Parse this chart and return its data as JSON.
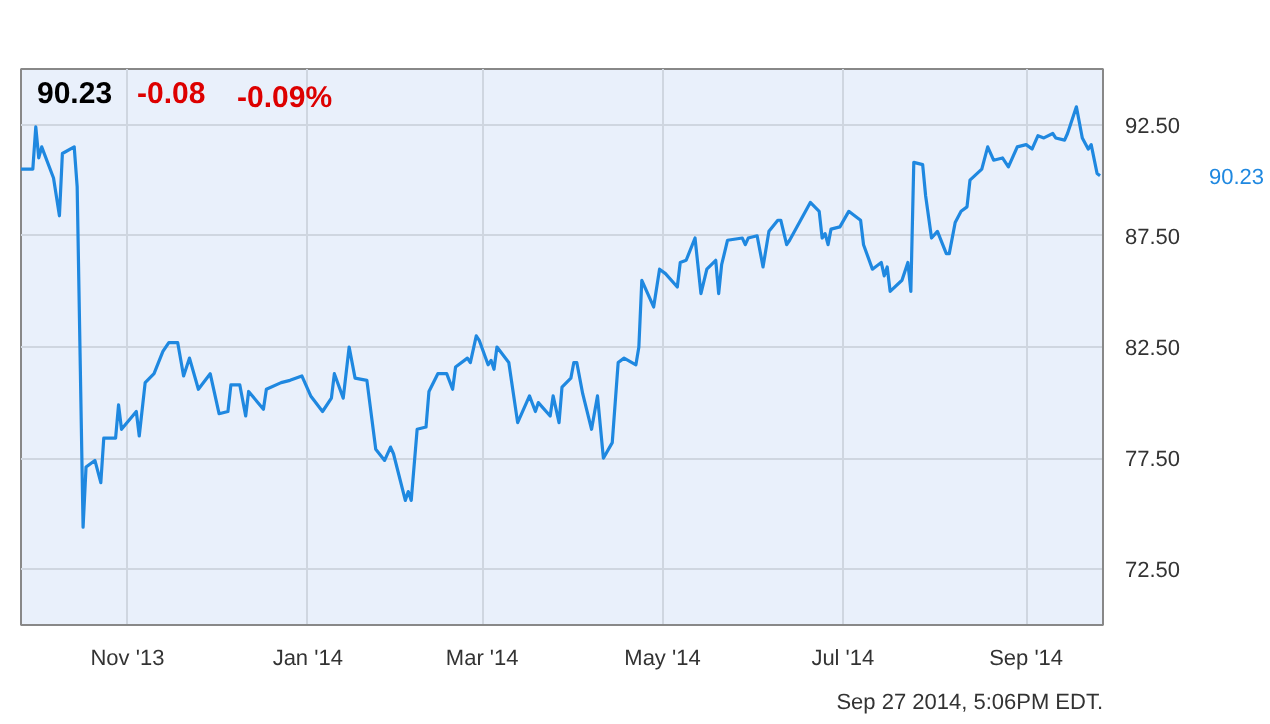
{
  "chart_data": {
    "type": "line",
    "title": "90.23",
    "annotations": [
      "-0.08",
      "-0.09%",
      "Sep 27 2014, 5:06PM EDT.",
      "90.23"
    ],
    "x": [
      "2013-09-26",
      "2013-09-30",
      "2013-10-01",
      "2013-10-02",
      "2013-10-03",
      "2013-10-07",
      "2013-10-09",
      "2013-10-10",
      "2013-10-14",
      "2013-10-15",
      "2013-10-17",
      "2013-10-18",
      "2013-10-21",
      "2013-10-23",
      "2013-10-24",
      "2013-10-28",
      "2013-10-29",
      "2013-10-30",
      "2013-11-04",
      "2013-11-05",
      "2013-11-07",
      "2013-11-10",
      "2013-11-13",
      "2013-11-15",
      "2013-11-18",
      "2013-11-20",
      "2013-11-22",
      "2013-11-25",
      "2013-11-29",
      "2013-12-02",
      "2013-12-05",
      "2013-12-06",
      "2013-12-09",
      "2013-12-11",
      "2013-12-12",
      "2013-12-17",
      "2013-12-18",
      "2013-12-23",
      "2013-12-26",
      "2013-12-30",
      "2014-01-02",
      "2014-01-06",
      "2014-01-09",
      "2014-01-10",
      "2014-01-13",
      "2014-01-15",
      "2014-01-17",
      "2014-01-21",
      "2014-01-24",
      "2014-01-27",
      "2014-01-29",
      "2014-01-30",
      "2014-02-03",
      "2014-02-04",
      "2014-02-05",
      "2014-02-07",
      "2014-02-10",
      "2014-02-11",
      "2014-02-14",
      "2014-02-17",
      "2014-02-19",
      "2014-02-20",
      "2014-02-24",
      "2014-02-25",
      "2014-02-27",
      "2014-02-28",
      "2014-03-03",
      "2014-03-04",
      "2014-03-05",
      "2014-03-06",
      "2014-03-10",
      "2014-03-13",
      "2014-03-17",
      "2014-03-19",
      "2014-03-20",
      "2014-03-24",
      "2014-03-25",
      "2014-03-27",
      "2014-03-28",
      "2014-03-31",
      "2014-04-01",
      "2014-04-02",
      "2014-04-04",
      "2014-04-07",
      "2014-04-09",
      "2014-04-11",
      "2014-04-14",
      "2014-04-16",
      "2014-04-18",
      "2014-04-22",
      "2014-04-23",
      "2014-04-24",
      "2014-04-28",
      "2014-04-30",
      "2014-05-02",
      "2014-05-06",
      "2014-05-07",
      "2014-05-09",
      "2014-05-12",
      "2014-05-14",
      "2014-05-16",
      "2014-05-19",
      "2014-05-20",
      "2014-05-21",
      "2014-05-23",
      "2014-05-28",
      "2014-05-29",
      "2014-05-30",
      "2014-06-02",
      "2014-06-04",
      "2014-06-06",
      "2014-06-09",
      "2014-06-10",
      "2014-06-12",
      "2014-06-13",
      "2014-06-20",
      "2014-06-23",
      "2014-06-24",
      "2014-06-25",
      "2014-06-26",
      "2014-06-27",
      "2014-06-30",
      "2014-07-03",
      "2014-07-07",
      "2014-07-08",
      "2014-07-11",
      "2014-07-14",
      "2014-07-15",
      "2014-07-16",
      "2014-07-17",
      "2014-07-21",
      "2014-07-23",
      "2014-07-24",
      "2014-07-25",
      "2014-07-28",
      "2014-07-29",
      "2014-07-31",
      "2014-08-02",
      "2014-08-05",
      "2014-08-06",
      "2014-08-08",
      "2014-08-10",
      "2014-08-12",
      "2014-08-13",
      "2014-08-17",
      "2014-08-19",
      "2014-08-21",
      "2014-08-24",
      "2014-08-26",
      "2014-08-29",
      "2014-09-01",
      "2014-09-03",
      "2014-09-05",
      "2014-09-07",
      "2014-09-10",
      "2014-09-11",
      "2014-09-14",
      "2014-09-15",
      "2014-09-18",
      "2014-09-20",
      "2014-09-22",
      "2014-09-23",
      "2014-09-25",
      "2014-09-26"
    ],
    "series": [
      {
        "color": "#1f88e0",
        "values": [
          90.5,
          90.5,
          92.4,
          91.0,
          91.5,
          90.1,
          88.4,
          91.2,
          91.5,
          89.7,
          74.4,
          77.1,
          77.4,
          76.4,
          78.4,
          78.4,
          79.9,
          78.8,
          79.6,
          78.5,
          80.9,
          81.3,
          82.3,
          82.7,
          82.7,
          81.2,
          82.0,
          80.6,
          81.3,
          79.5,
          79.6,
          80.8,
          80.8,
          79.4,
          80.5,
          79.7,
          80.6,
          80.9,
          81.0,
          81.2,
          80.3,
          79.6,
          80.2,
          81.3,
          80.2,
          82.5,
          81.1,
          81.0,
          77.9,
          77.4,
          78.0,
          77.7,
          75.6,
          76.0,
          75.6,
          78.8,
          78.9,
          80.5,
          81.3,
          81.3,
          80.6,
          81.6,
          82.0,
          81.8,
          83.0,
          82.8,
          81.7,
          81.9,
          81.5,
          82.5,
          81.8,
          79.1,
          80.3,
          79.6,
          80.0,
          79.4,
          80.3,
          79.1,
          80.7,
          81.1,
          81.8,
          81.8,
          80.4,
          78.8,
          80.3,
          77.5,
          78.2,
          81.8,
          82.0,
          81.7,
          82.5,
          85.5,
          84.3,
          86.0,
          85.8,
          85.2,
          86.3,
          86.4,
          87.4,
          84.9,
          86.0,
          86.4,
          84.9,
          86.2,
          87.3,
          87.4,
          87.1,
          87.4,
          87.5,
          86.1,
          87.7,
          88.2,
          88.2,
          87.1,
          87.3,
          89.0,
          88.6,
          87.4,
          87.6,
          87.1,
          87.8,
          87.9,
          88.6,
          88.2,
          87.1,
          86.0,
          86.3,
          85.7,
          86.1,
          85.0,
          85.5,
          86.3,
          85.0,
          90.8,
          90.7,
          89.3,
          87.4,
          87.7,
          86.7,
          86.7,
          88.1,
          88.6,
          88.8,
          90.0,
          90.5,
          91.5,
          90.9,
          91.0,
          90.6,
          91.5,
          91.6,
          91.4,
          92.0,
          91.9,
          92.1,
          91.9,
          91.8,
          92.1,
          93.3,
          91.9,
          91.4,
          91.6,
          90.3,
          90.2
        ]
      }
    ],
    "xlim": [
      "2013-09-26",
      "2014-09-27"
    ],
    "xticks": [
      {
        "value": "2013-11-01",
        "label": "Nov '13"
      },
      {
        "value": "2014-01-01",
        "label": "Jan '14"
      },
      {
        "value": "2014-03-01",
        "label": "Mar '14"
      },
      {
        "value": "2014-05-01",
        "label": "May '14"
      },
      {
        "value": "2014-07-01",
        "label": "Jul '14"
      },
      {
        "value": "2014-09-01",
        "label": "Sep '14"
      }
    ],
    "ylim": [
      70,
      95
    ],
    "yticks": [
      {
        "value": 72.5,
        "label": "72.50"
      },
      {
        "value": 77.5,
        "label": "77.50"
      },
      {
        "value": 82.5,
        "label": "82.50"
      },
      {
        "value": 87.5,
        "label": "87.50"
      },
      {
        "value": 92.5,
        "label": "92.50"
      }
    ],
    "grid": true,
    "marker": "none",
    "line_style": "solid"
  }
}
